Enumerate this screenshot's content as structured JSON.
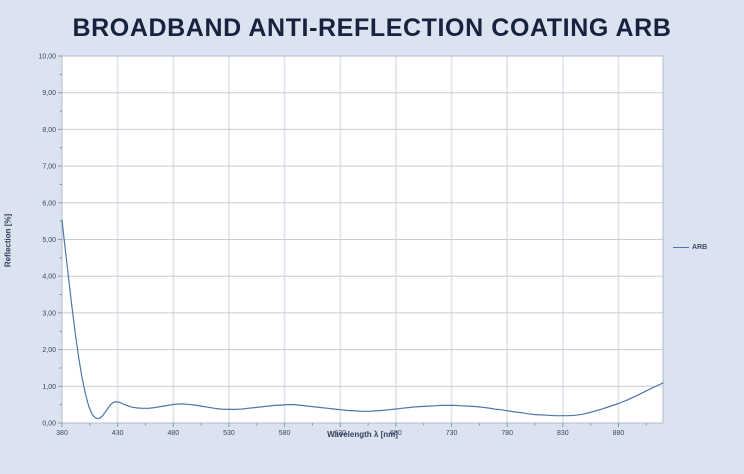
{
  "title": "BROADBAND ANTI-REFLECTION COATING ARB",
  "colors": {
    "page_background": "#dbe3f0",
    "plot_background": "#ffffff",
    "grid_horizontal": "#c7ccd6",
    "grid_vertical": "#e3e7ee",
    "plot_border": "#b3bcc9",
    "tick": "#8f99a8",
    "tick_label": "#3c4960",
    "axis_title": "#35425c",
    "title": "#16223e",
    "series": "#4d76a8"
  },
  "legend": {
    "label": "ARB"
  },
  "chart_data": {
    "type": "line",
    "title": "BROADBAND ANTI-REFLECTION COATING ARB",
    "xlabel": "Wavelength λ [nm]",
    "ylabel": "Reflection [%]",
    "xlim": [
      380,
      920
    ],
    "ylim": [
      0,
      10
    ],
    "x_ticks": [
      380,
      430,
      480,
      530,
      580,
      630,
      680,
      730,
      780,
      830,
      880
    ],
    "x_tick_labels": [
      "380",
      "430",
      "480",
      "530",
      "580",
      "630",
      "680",
      "730",
      "780",
      "830",
      "880"
    ],
    "x_minor_step": 25,
    "y_ticks": [
      0,
      1,
      2,
      3,
      4,
      5,
      6,
      7,
      8,
      9,
      10
    ],
    "y_tick_labels": [
      "0,00",
      "1,00",
      "2,00",
      "3,00",
      "4,00",
      "5,00",
      "6,00",
      "7,00",
      "8,00",
      "9,00",
      "10,00"
    ],
    "y_minor_step": 0.5,
    "grid": true,
    "legend_position": "right",
    "series": [
      {
        "name": "ARB",
        "color": "#4d76a8",
        "points": [
          [
            380,
            5.52
          ],
          [
            383,
            4.72
          ],
          [
            386,
            3.92
          ],
          [
            389,
            3.15
          ],
          [
            392,
            2.42
          ],
          [
            395,
            1.78
          ],
          [
            398,
            1.24
          ],
          [
            401,
            0.8
          ],
          [
            404,
            0.46
          ],
          [
            407,
            0.24
          ],
          [
            410,
            0.14
          ],
          [
            413,
            0.12
          ],
          [
            416,
            0.18
          ],
          [
            419,
            0.3
          ],
          [
            422,
            0.44
          ],
          [
            425,
            0.54
          ],
          [
            428,
            0.58
          ],
          [
            431,
            0.57
          ],
          [
            434,
            0.53
          ],
          [
            438,
            0.48
          ],
          [
            443,
            0.43
          ],
          [
            448,
            0.41
          ],
          [
            453,
            0.4
          ],
          [
            458,
            0.4
          ],
          [
            463,
            0.42
          ],
          [
            469,
            0.45
          ],
          [
            475,
            0.48
          ],
          [
            481,
            0.51
          ],
          [
            487,
            0.52
          ],
          [
            493,
            0.51
          ],
          [
            499,
            0.49
          ],
          [
            505,
            0.46
          ],
          [
            511,
            0.43
          ],
          [
            517,
            0.4
          ],
          [
            523,
            0.38
          ],
          [
            529,
            0.37
          ],
          [
            535,
            0.37
          ],
          [
            541,
            0.38
          ],
          [
            547,
            0.4
          ],
          [
            553,
            0.42
          ],
          [
            559,
            0.44
          ],
          [
            565,
            0.46
          ],
          [
            571,
            0.48
          ],
          [
            577,
            0.49
          ],
          [
            583,
            0.5
          ],
          [
            589,
            0.5
          ],
          [
            595,
            0.48
          ],
          [
            601,
            0.46
          ],
          [
            607,
            0.44
          ],
          [
            613,
            0.42
          ],
          [
            619,
            0.4
          ],
          [
            625,
            0.38
          ],
          [
            631,
            0.36
          ],
          [
            637,
            0.34
          ],
          [
            643,
            0.33
          ],
          [
            649,
            0.32
          ],
          [
            655,
            0.32
          ],
          [
            661,
            0.33
          ],
          [
            667,
            0.34
          ],
          [
            673,
            0.36
          ],
          [
            679,
            0.38
          ],
          [
            685,
            0.4
          ],
          [
            691,
            0.42
          ],
          [
            697,
            0.44
          ],
          [
            703,
            0.45
          ],
          [
            709,
            0.46
          ],
          [
            715,
            0.47
          ],
          [
            721,
            0.48
          ],
          [
            727,
            0.48
          ],
          [
            733,
            0.48
          ],
          [
            739,
            0.47
          ],
          [
            745,
            0.46
          ],
          [
            751,
            0.45
          ],
          [
            757,
            0.43
          ],
          [
            763,
            0.41
          ],
          [
            769,
            0.38
          ],
          [
            775,
            0.36
          ],
          [
            781,
            0.33
          ],
          [
            787,
            0.3
          ],
          [
            793,
            0.28
          ],
          [
            799,
            0.25
          ],
          [
            805,
            0.23
          ],
          [
            811,
            0.22
          ],
          [
            817,
            0.21
          ],
          [
            823,
            0.2
          ],
          [
            829,
            0.2
          ],
          [
            835,
            0.2
          ],
          [
            841,
            0.21
          ],
          [
            848,
            0.24
          ],
          [
            856,
            0.3
          ],
          [
            864,
            0.37
          ],
          [
            872,
            0.45
          ],
          [
            880,
            0.53
          ],
          [
            888,
            0.63
          ],
          [
            896,
            0.74
          ],
          [
            904,
            0.86
          ],
          [
            912,
            0.98
          ],
          [
            920,
            1.09
          ]
        ]
      }
    ]
  }
}
